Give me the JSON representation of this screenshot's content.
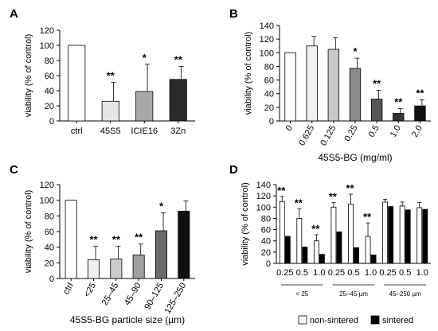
{
  "chart_data": [
    {
      "type": "bar",
      "panel": "A",
      "categories": [
        "ctrl",
        "45S5",
        "ICIE16",
        "3Zn"
      ],
      "values": [
        100,
        26,
        39,
        55
      ],
      "errors": [
        0,
        25,
        36,
        17
      ],
      "colors": [
        "#ffffff",
        "#e6e6e6",
        "#a8a8a8",
        "#2a2a2a"
      ],
      "significance": [
        "",
        "**",
        "*",
        "**"
      ],
      "ylabel": "viability (% of control)",
      "xlabel": "",
      "ylim": [
        0,
        120
      ],
      "yticks": [
        0,
        20,
        40,
        60,
        80,
        100,
        120
      ]
    },
    {
      "type": "bar",
      "panel": "B",
      "categories": [
        "0",
        "0.625",
        "0.125",
        "0.25",
        "0.5",
        "1.0",
        "2.0"
      ],
      "values": [
        100,
        110,
        105,
        77,
        32,
        11,
        22
      ],
      "errors": [
        0,
        14,
        17,
        15,
        13,
        7,
        9
      ],
      "colors": [
        "#ffffff",
        "#efefef",
        "#c8c8c8",
        "#8a8a8a",
        "#555555",
        "#333333",
        "#111111"
      ],
      "significance": [
        "",
        "",
        "",
        "*",
        "**",
        "**",
        "**"
      ],
      "ylabel": "viability (% of control)",
      "xlabel": "45S5-BG (mg/ml)",
      "ylim": [
        0,
        140
      ],
      "yticks": [
        0,
        20,
        40,
        60,
        80,
        100,
        120,
        140
      ]
    },
    {
      "type": "bar",
      "panel": "C",
      "categories": [
        "ctrl",
        "<25",
        "25–45",
        "45–90",
        "90–125",
        "125–250"
      ],
      "values": [
        100,
        24,
        25,
        30,
        61,
        86
      ],
      "errors": [
        0,
        17,
        16,
        14,
        23,
        13
      ],
      "colors": [
        "#ffffff",
        "#efefef",
        "#cccccc",
        "#a0a0a0",
        "#6a6a6a",
        "#111111"
      ],
      "significance": [
        "",
        "**",
        "**",
        "**",
        "*",
        ""
      ],
      "ylabel": "viability (% of control)",
      "xlabel": "45S5-BG particle size (µm)",
      "ylim": [
        0,
        120
      ],
      "yticks": [
        0,
        20,
        40,
        60,
        80,
        100,
        120
      ]
    },
    {
      "type": "bar",
      "panel": "D",
      "categories": [
        "0.25",
        "0.5",
        "1.0",
        "0.25",
        "0.5",
        "1.0",
        "0.25",
        "0.5",
        "1.0"
      ],
      "groups": [
        "< 25",
        "25–45 µm",
        "45–250 µm"
      ],
      "series": [
        {
          "name": "non-sintered",
          "color": "#ffffff",
          "values": [
            110,
            80,
            40,
            100,
            105,
            48,
            109,
            102,
            99
          ],
          "errors": [
            9,
            17,
            11,
            8,
            18,
            24,
            5,
            7,
            9
          ],
          "significance": [
            "**",
            "**",
            "**",
            "**",
            "**",
            "**",
            "",
            "",
            ""
          ]
        },
        {
          "name": "sintered",
          "color": "#000000",
          "values": [
            48,
            29,
            16,
            56,
            28,
            15,
            101,
            95,
            96
          ],
          "errors": [
            0,
            0,
            0,
            0,
            0,
            0,
            0,
            0,
            0
          ],
          "significance": [
            "",
            "",
            "",
            "",
            "",
            "",
            "",
            "",
            ""
          ]
        }
      ],
      "ylabel": "viability (% of control)",
      "xlabel": "",
      "ylim": [
        0,
        140
      ],
      "yticks": [
        0,
        20,
        40,
        60,
        80,
        100,
        120,
        140
      ],
      "legend_position": "bottom"
    }
  ]
}
